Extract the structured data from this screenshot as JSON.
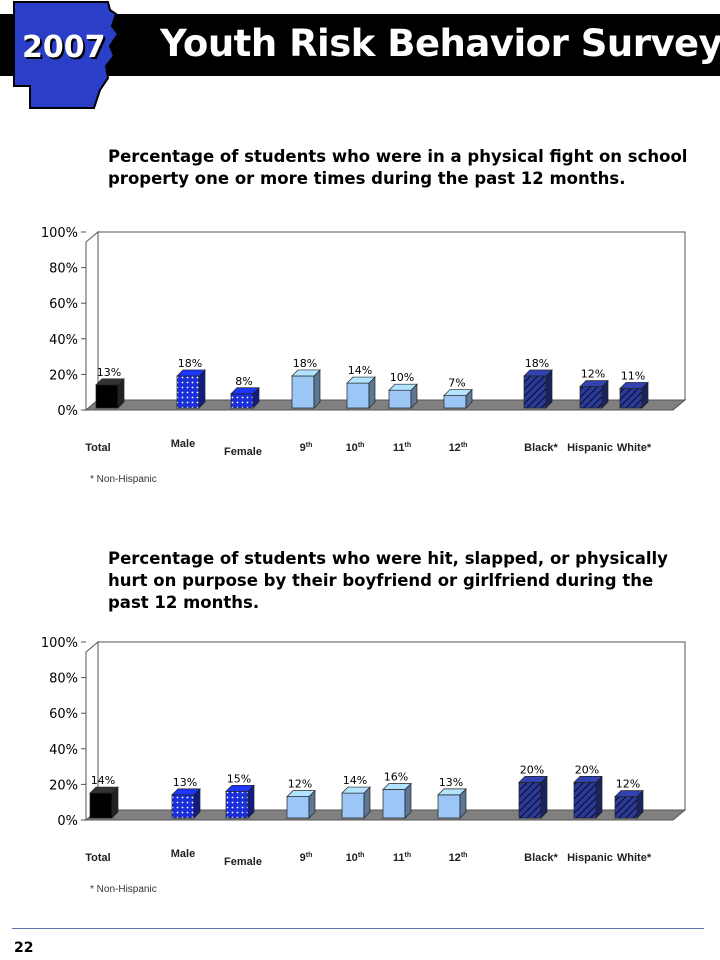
{
  "header": {
    "year": "2007",
    "title": "Youth Risk Behavior Survey"
  },
  "page_number": "22",
  "chart_data": [
    {
      "type": "bar",
      "title": "Percentage of students who were in a physical fight  on school property one or more times during the past 12 months.",
      "categories": [
        "Total",
        "Male",
        "Female",
        "9th",
        "10th",
        "11th",
        "12th",
        "Black*",
        "Hispanic",
        "White*"
      ],
      "values": [
        13,
        18,
        8,
        18,
        14,
        10,
        7,
        18,
        12,
        11
      ],
      "value_labels": [
        "13%",
        "18%",
        "8%",
        "18%",
        "14%",
        "10%",
        "7%",
        "18%",
        "12%",
        "11%"
      ],
      "yticks": [
        "100%",
        "80%",
        "60%",
        "40%",
        "20%",
        "0%"
      ],
      "ylim": [
        0,
        100
      ],
      "footnote": "* Non-Hispanic",
      "colors": {
        "total": "#000000",
        "gender": "#1a2fd9",
        "grade": "#9cc6f5",
        "race": "#2a3a9a"
      }
    },
    {
      "type": "bar",
      "title": "Percentage of students who were hit, slapped, or physically hurt on purpose by their boyfriend or girlfriend during the past 12 months.",
      "categories": [
        "Total",
        "Male",
        "Female",
        "9th",
        "10th",
        "11th",
        "12th",
        "Black*",
        "Hispanic",
        "White*"
      ],
      "values": [
        14,
        13,
        15,
        12,
        14,
        16,
        13,
        20,
        20,
        12
      ],
      "value_labels": [
        "14%",
        "13%",
        "15%",
        "12%",
        "14%",
        "16%",
        "13%",
        "20%",
        "20%",
        "12%"
      ],
      "yticks": [
        "100%",
        "80%",
        "60%",
        "40%",
        "20%",
        "0%"
      ],
      "ylim": [
        0,
        100
      ],
      "footnote": "* Non-Hispanic",
      "colors": {
        "total": "#000000",
        "gender": "#1a2fd9",
        "grade": "#9cc6f5",
        "race": "#2a3a9a"
      }
    }
  ]
}
